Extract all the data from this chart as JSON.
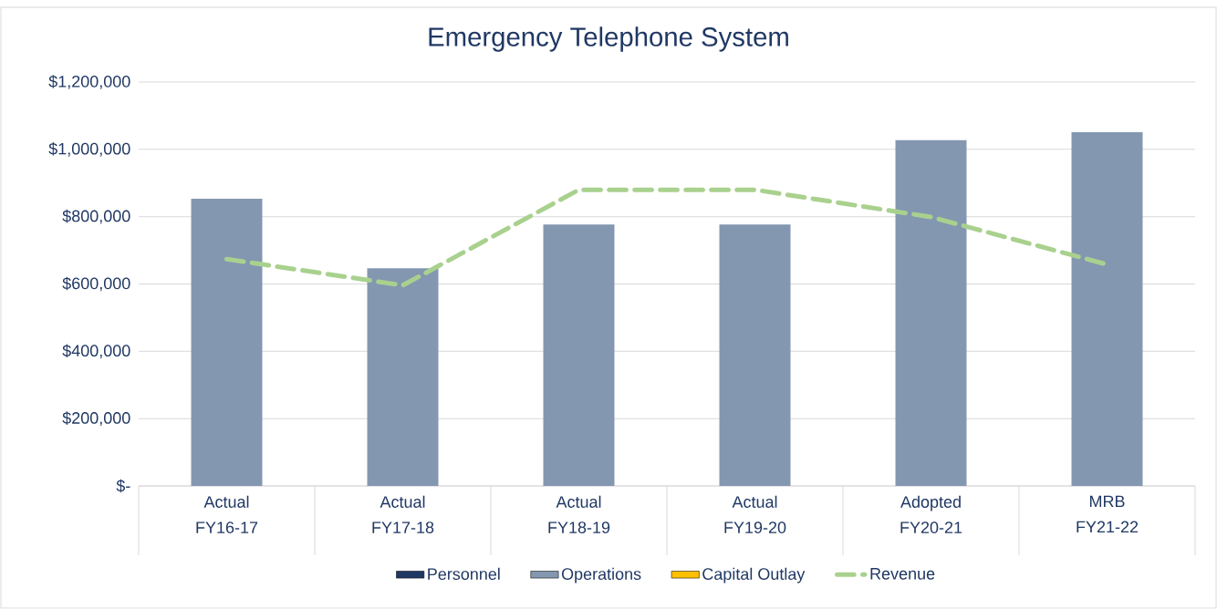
{
  "chart_data": {
    "type": "bar",
    "title": "Emergency Telephone System",
    "categories": [
      "Actual FY16-17",
      "Actual FY17-18",
      "Actual FY18-19",
      "Actual FY19-20",
      "Adopted FY20-21",
      "MRB FY21-22"
    ],
    "series": [
      {
        "name": "Personnel",
        "color": "#203864",
        "values": [
          null,
          null,
          null,
          null,
          null,
          null
        ]
      },
      {
        "name": "Operations",
        "color": "#8497b0",
        "values": [
          853000,
          647000,
          777000,
          777000,
          1027000,
          1051000
        ]
      },
      {
        "name": "Capital Outlay",
        "color": "#ffc000",
        "values": [
          null,
          null,
          null,
          null,
          null,
          null
        ]
      },
      {
        "name": "Revenue",
        "type": "line",
        "line_style": "dashed",
        "color": "#a9d18e",
        "values": [
          674000,
          596000,
          880000,
          880000,
          799000,
          658000
        ]
      }
    ],
    "ylim": [
      0,
      1200000
    ],
    "yticks": [
      {
        "value": 0,
        "label": "$-"
      },
      {
        "value": 200000,
        "label": "$200,000"
      },
      {
        "value": 400000,
        "label": "$400,000"
      },
      {
        "value": 600000,
        "label": "$600,000"
      },
      {
        "value": 800000,
        "label": "$800,000"
      },
      {
        "value": 1000000,
        "label": "$1,000,000"
      },
      {
        "value": 1200000,
        "label": "$1,200,000"
      }
    ],
    "grid": "y",
    "legend": "bottom"
  }
}
